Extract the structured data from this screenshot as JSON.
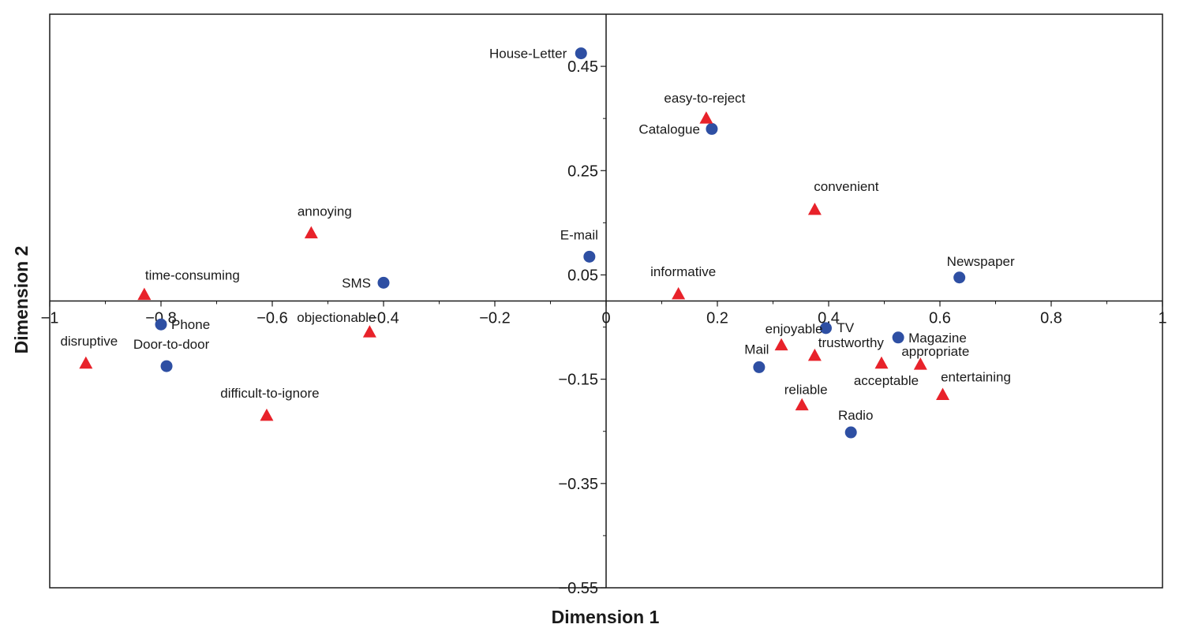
{
  "chart_data": {
    "type": "scatter",
    "title": "",
    "xlabel": "Dimension 1",
    "ylabel": "Dimension 2",
    "xlim": [
      -1,
      1
    ],
    "ylim": [
      -0.55,
      0.55
    ],
    "x_ticks": [
      -1,
      -0.8,
      -0.6,
      -0.4,
      -0.2,
      0,
      0.2,
      0.4,
      0.6,
      0.8,
      1
    ],
    "x_tick_labels": [
      "−1",
      "−0.8",
      "−0.6",
      "−0.4",
      "−0.2",
      "0",
      "0.2",
      "0.4",
      "0.6",
      "0.8",
      "1"
    ],
    "y_ticks": [
      0.45,
      0.25,
      0.05,
      -0.15,
      -0.35,
      -0.55
    ],
    "y_tick_labels": [
      "0.45",
      "0.25",
      "0.05",
      "−0.15",
      "−0.35",
      "−0.55"
    ],
    "grid": false,
    "colors": {
      "media": "#2e4fa3",
      "attributes": "#e8222a",
      "axis": "#1a1a1a"
    },
    "series": [
      {
        "name": "media",
        "marker": "circle",
        "points": [
          {
            "label": "House-Letter",
            "x": -0.045,
            "y": 0.475
          },
          {
            "label": "Catalogue",
            "x": 0.19,
            "y": 0.33
          },
          {
            "label": "E-mail",
            "x": -0.03,
            "y": 0.085
          },
          {
            "label": "SMS",
            "x": -0.4,
            "y": 0.035
          },
          {
            "label": "Newspaper",
            "x": 0.635,
            "y": 0.045
          },
          {
            "label": "Phone",
            "x": -0.8,
            "y": -0.045
          },
          {
            "label": "Door-to-door",
            "x": -0.79,
            "y": -0.125
          },
          {
            "label": "TV",
            "x": 0.395,
            "y": -0.052
          },
          {
            "label": "Magazine",
            "x": 0.525,
            "y": -0.07
          },
          {
            "label": "Mail",
            "x": 0.275,
            "y": -0.127
          },
          {
            "label": "Radio",
            "x": 0.44,
            "y": -0.252
          }
        ]
      },
      {
        "name": "attributes",
        "marker": "triangle",
        "points": [
          {
            "label": "easy-to-reject",
            "x": 0.18,
            "y": 0.35
          },
          {
            "label": "convenient",
            "x": 0.375,
            "y": 0.175
          },
          {
            "label": "annoying",
            "x": -0.53,
            "y": 0.13
          },
          {
            "label": "informative",
            "x": 0.13,
            "y": 0.013
          },
          {
            "label": "time-consuming",
            "x": -0.83,
            "y": 0.012
          },
          {
            "label": "objectionable",
            "x": -0.425,
            "y": -0.06
          },
          {
            "label": "disruptive",
            "x": -0.935,
            "y": -0.12
          },
          {
            "label": "difficult-to-ignore",
            "x": -0.61,
            "y": -0.22
          },
          {
            "label": "enjoyable",
            "x": 0.315,
            "y": -0.085
          },
          {
            "label": "trustworthy",
            "x": 0.375,
            "y": -0.105
          },
          {
            "label": "acceptable",
            "x": 0.495,
            "y": -0.12
          },
          {
            "label": "appropriate",
            "x": 0.565,
            "y": -0.122
          },
          {
            "label": "entertaining",
            "x": 0.605,
            "y": -0.18
          },
          {
            "label": "reliable",
            "x": 0.352,
            "y": -0.2
          }
        ]
      }
    ]
  }
}
